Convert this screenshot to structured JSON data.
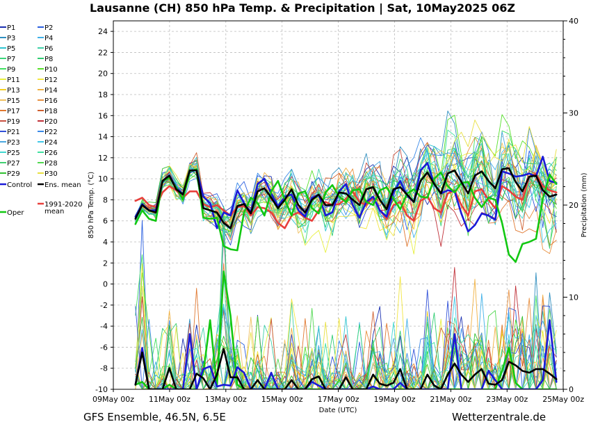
{
  "title": "Lausanne  (CH)  850 hPa Temp. & Precipitation | Sat, 10May2025 06Z",
  "footer": {
    "left": "GFS Ensemble, 46.5N, 6.5E",
    "right": "Wetterzentrale.de"
  },
  "chart_data": {
    "type": "line",
    "title": "Lausanne  (CH)  850 hPa Temp. & Precipitation | Sat, 10May2025 06Z",
    "xlabel": "Date (UTC)",
    "ylabel": "850 hPa Temp. (°C)",
    "y2label": "Precipitation (mm)",
    "x_ticks": [
      "09May 00z",
      "11May 00z",
      "13May 00z",
      "15May 00z",
      "17May 00z",
      "19May 00z",
      "21May 00z",
      "23May 00z",
      "25May 00z"
    ],
    "ylim": [
      -10,
      25
    ],
    "y_ticks": [
      -10,
      -8,
      -6,
      -4,
      -2,
      0,
      2,
      4,
      6,
      8,
      10,
      12,
      14,
      16,
      18,
      20,
      22,
      24
    ],
    "y2lim": [
      0,
      40
    ],
    "y2_ticks": [
      0,
      10,
      20,
      30,
      40
    ],
    "grid": true,
    "legend_position": "left-outside",
    "x_count": 63,
    "x": [
      "10May 06z",
      "10May 12z",
      "10May 18z",
      "11May 00z",
      "11May 06z",
      "11May 12z",
      "11May 18z",
      "12May 00z",
      "12May 06z",
      "12May 12z",
      "12May 18z",
      "13May 00z",
      "13May 06z",
      "13May 12z",
      "13May 18z",
      "14May 00z",
      "14May 06z",
      "14May 12z",
      "14May 18z",
      "15May 00z",
      "15May 06z",
      "15May 12z",
      "15May 18z",
      "16May 00z",
      "16May 06z",
      "16May 12z",
      "16May 18z",
      "17May 00z",
      "17May 06z",
      "17May 12z",
      "17May 18z",
      "18May 00z",
      "18May 06z",
      "18May 12z",
      "18May 18z",
      "19May 00z",
      "19May 06z",
      "19May 12z",
      "19May 18z",
      "20May 00z",
      "20May 06z",
      "20May 12z",
      "20May 18z",
      "21May 00z",
      "21May 06z",
      "21May 12z",
      "21May 18z",
      "22May 00z",
      "22May 06z",
      "22May 12z",
      "22May 18z",
      "23May 00z",
      "23May 06z",
      "23May 12z",
      "23May 18z",
      "24May 00z",
      "24May 06z",
      "24May 12z",
      "24May 18z",
      "25May 00z",
      "25May 06z",
      "25May 12z",
      "25May 18z"
    ],
    "legend": [
      {
        "label": "P1",
        "color": "#1a2fb0"
      },
      {
        "label": "P2",
        "color": "#2a5fe0"
      },
      {
        "label": "P3",
        "color": "#2f8fc0"
      },
      {
        "label": "P4",
        "color": "#3fb0e8"
      },
      {
        "label": "P5",
        "color": "#2ec4d0"
      },
      {
        "label": "P6",
        "color": "#3fd0a8"
      },
      {
        "label": "P7",
        "color": "#3ad67a"
      },
      {
        "label": "P8",
        "color": "#2ecc71"
      },
      {
        "label": "P9",
        "color": "#3fe060"
      },
      {
        "label": "P10",
        "color": "#55e02a"
      },
      {
        "label": "P11",
        "color": "#e8f040"
      },
      {
        "label": "P12",
        "color": "#f2e640"
      },
      {
        "label": "P13",
        "color": "#f5d020"
      },
      {
        "label": "P14",
        "color": "#f0b040"
      },
      {
        "label": "P15",
        "color": "#f0c060"
      },
      {
        "label": "P16",
        "color": "#e89040"
      },
      {
        "label": "P17",
        "color": "#e07830"
      },
      {
        "label": "P18",
        "color": "#d06030"
      },
      {
        "label": "P19",
        "color": "#c85040"
      },
      {
        "label": "P20",
        "color": "#c03038"
      },
      {
        "label": "P21",
        "color": "#3050d8"
      },
      {
        "label": "P22",
        "color": "#3a8ae8"
      },
      {
        "label": "P23",
        "color": "#4aa8e0"
      },
      {
        "label": "P24",
        "color": "#40c8e8"
      },
      {
        "label": "P25",
        "color": "#40d8d0"
      },
      {
        "label": "P26",
        "color": "#40e0a0"
      },
      {
        "label": "P27",
        "color": "#40d070"
      },
      {
        "label": "P28",
        "color": "#50d850"
      },
      {
        "label": "P29",
        "color": "#30c030"
      },
      {
        "label": "P30",
        "color": "#e8e040"
      },
      {
        "label": "Control",
        "color": "#1a1ad8"
      },
      {
        "label": "Ens. mean",
        "color": "#000000"
      },
      {
        "label": "Oper",
        "color": "#12c812"
      },
      {
        "label": "1991-2020 mean",
        "color": "#e8403c"
      }
    ],
    "series_temperature": [
      {
        "name": "Ens. mean",
        "color": "#000000",
        "width": 2.6,
        "values": [
          6.2,
          7.5,
          7.0,
          6.8,
          9.8,
          10.3,
          9.0,
          8.5,
          10.8,
          10.8,
          7.2,
          7.0,
          6.8,
          5.8,
          5.3,
          7.4,
          7.6,
          6.7,
          8.8,
          9.1,
          8.2,
          7.2,
          8.0,
          9.0,
          7.5,
          6.8,
          8.0,
          8.5,
          7.5,
          7.5,
          8.7,
          8.6,
          8.0,
          7.5,
          9.0,
          9.2,
          8.0,
          7.1,
          9.0,
          9.2,
          8.5,
          7.8,
          9.8,
          10.6,
          9.5,
          8.6,
          10.5,
          10.8,
          9.7,
          8.6,
          10.3,
          10.7,
          9.8,
          9.1,
          10.9,
          11.0,
          9.7,
          8.8,
          10.2,
          10.3,
          8.9,
          8.3,
          8.5
        ]
      },
      {
        "name": "Oper",
        "color": "#12c812",
        "width": 2.6,
        "values": [
          5.7,
          7.0,
          6.2,
          6.0,
          9.8,
          10.1,
          9.2,
          8.0,
          10.7,
          10.9,
          6.3,
          6.2,
          6.3,
          3.6,
          3.3,
          3.2,
          6.8,
          8.2,
          7.7,
          6.5,
          8.8,
          9.8,
          8.0,
          6.5,
          8.6,
          8.8,
          7.2,
          6.7,
          8.7,
          9.4,
          8.3,
          7.8,
          8.9,
          9.0,
          7.8,
          7.5,
          8.9,
          9.2,
          8.1,
          7.1,
          8.6,
          9.0,
          8.3,
          8.2,
          10.0,
          10.6,
          9.3,
          8.7,
          9.6,
          9.7,
          8.2,
          7.3,
          8.2,
          8.0,
          5.8,
          2.8,
          2.1,
          3.8,
          4.0,
          4.3,
          8.1,
          10.4,
          9.5
        ]
      },
      {
        "name": "Control",
        "color": "#1a1ad8",
        "width": 2.6,
        "values": [
          6.4,
          7.6,
          7.0,
          7.0,
          9.7,
          10.3,
          9.2,
          8.5,
          10.6,
          10.9,
          8.3,
          7.7,
          5.3,
          6.8,
          6.5,
          8.9,
          7.7,
          6.8,
          9.5,
          10.0,
          8.6,
          7.4,
          8.3,
          8.5,
          7.0,
          6.4,
          8.2,
          8.5,
          6.5,
          6.8,
          8.8,
          9.5,
          7.5,
          6.3,
          7.8,
          8.3,
          7.0,
          6.4,
          8.7,
          9.8,
          8.4,
          7.8,
          10.8,
          11.5,
          9.5,
          8.6,
          8.9,
          8.8,
          6.7,
          5.0,
          5.6,
          6.7,
          6.5,
          6.1,
          10.7,
          10.5,
          10.2,
          10.3,
          10.5,
          10.2,
          12.1,
          9.8,
          9.6
        ]
      },
      {
        "name": "1991-2020 mean",
        "color": "#e8403c",
        "width": 2.6,
        "values": [
          7.9,
          8.2,
          7.5,
          7.3,
          8.7,
          9.3,
          8.9,
          8.2,
          8.8,
          8.8,
          7.6,
          7.3,
          7.5,
          7.0,
          6.5,
          7.3,
          7.4,
          6.5,
          7.3,
          7.2,
          6.8,
          5.8,
          5.3,
          6.5,
          6.8,
          6.3,
          6.0,
          7.0,
          7.8,
          7.5,
          7.6,
          8.1,
          8.8,
          7.8,
          7.5,
          8.2,
          7.0,
          6.2,
          7.5,
          7.8,
          6.5,
          6.0,
          7.9,
          8.3,
          7.2,
          6.8,
          8.6,
          8.9,
          7.5,
          6.5,
          8.8,
          9.0,
          8.0,
          7.2,
          9.3,
          8.9,
          8.3,
          8.0,
          10.2,
          10.5,
          9.3,
          8.9,
          8.7
        ]
      }
    ],
    "series_precipitation": [
      {
        "name": "Ens. mean",
        "color": "#000000",
        "width": 2.6,
        "values": [
          0.5,
          4.0,
          0,
          0,
          0,
          2.3,
          0,
          0,
          0,
          1.7,
          1.2,
          0,
          1.6,
          4.4,
          1.3,
          1.3,
          0,
          0,
          1.0,
          0,
          0,
          0,
          0,
          1.0,
          0,
          0,
          1.1,
          1.4,
          0,
          0,
          0,
          1.3,
          0,
          0,
          0,
          1.6,
          0.6,
          0.4,
          0.7,
          2.2,
          0,
          0,
          0,
          1.6,
          0.4,
          0,
          1.6,
          2.8,
          1.6,
          0.8,
          1.6,
          2.2,
          0.6,
          0.5,
          1.0,
          3.0,
          2.6,
          2.0,
          1.8,
          2.2,
          2.2,
          1.7,
          1.1
        ]
      },
      {
        "name": "Control",
        "color": "#1a1ad8",
        "width": 2.6,
        "values": [
          0.5,
          4.5,
          0,
          0,
          0,
          0,
          0,
          0,
          6.0,
          0,
          2.2,
          2.5,
          0.3,
          0.5,
          0.4,
          2.4,
          1.8,
          0,
          0,
          0,
          1.8,
          0,
          0,
          0,
          0,
          0,
          0.8,
          0.4,
          0,
          0,
          0,
          0,
          0,
          0,
          0,
          0.3,
          0,
          0,
          0,
          0.7,
          0,
          0,
          0,
          0,
          0,
          0,
          0,
          6.0,
          0,
          0,
          0,
          0,
          2.0,
          1.0,
          0,
          0,
          0,
          0,
          0,
          0,
          1.0,
          7.5,
          0.8
        ]
      },
      {
        "name": "Oper",
        "color": "#12c812",
        "width": 2.6,
        "values": [
          0.5,
          0.8,
          0,
          0,
          0,
          0.5,
          0,
          0,
          0,
          0,
          1.8,
          7.5,
          0.3,
          12.8,
          8.0,
          0.5,
          0,
          0,
          0,
          0,
          0,
          0,
          0,
          0,
          0,
          0,
          0,
          0,
          0,
          0,
          0,
          0,
          0,
          0,
          0,
          0,
          0,
          0,
          0,
          0,
          0,
          0,
          0,
          0,
          0,
          0,
          0,
          0,
          0,
          0,
          0,
          0,
          0,
          0,
          2.0,
          4.5,
          0.7,
          0,
          0,
          0,
          0,
          0,
          0
        ]
      }
    ],
    "members_note": "P1-P30 thin spaghetti lines drawn around the ensemble mean"
  }
}
